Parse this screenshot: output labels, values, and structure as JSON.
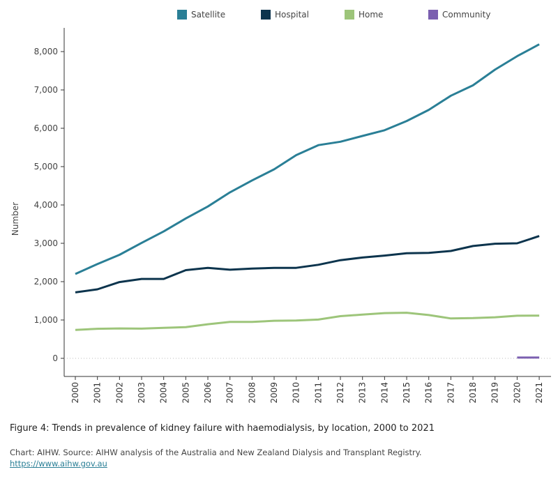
{
  "chart_data": {
    "type": "line",
    "title": "",
    "xlabel": "",
    "ylabel": "Number",
    "ylim": [
      0,
      8500
    ],
    "yticks": [
      0,
      1000,
      2000,
      3000,
      4000,
      5000,
      6000,
      7000,
      8000
    ],
    "ytick_labels": [
      "0",
      "1,000",
      "2,000",
      "3,000",
      "4,000",
      "5,000",
      "6,000",
      "7,000",
      "8,000"
    ],
    "x": [
      "2000",
      "2001",
      "2002",
      "2003",
      "2004",
      "2005",
      "2006",
      "2007",
      "2008",
      "2009",
      "2010",
      "2011",
      "2012",
      "2013",
      "2014",
      "2015",
      "2016",
      "2017",
      "2018",
      "2019",
      "2020",
      "2021"
    ],
    "grid": false,
    "legend_position": "top",
    "series": [
      {
        "name": "Satellite",
        "color": "#2a7f96",
        "values": [
          2200,
          2460,
          2700,
          3010,
          3310,
          3650,
          3960,
          4330,
          4640,
          4930,
          5300,
          5560,
          5650,
          5800,
          5950,
          6190,
          6480,
          6850,
          7120,
          7530,
          7880,
          8190
        ]
      },
      {
        "name": "Hospital",
        "color": "#0c344d",
        "values": [
          1720,
          1800,
          1990,
          2070,
          2070,
          2300,
          2360,
          2310,
          2340,
          2360,
          2360,
          2440,
          2560,
          2630,
          2680,
          2740,
          2750,
          2800,
          2930,
          2990,
          3000,
          3190
        ]
      },
      {
        "name": "Home",
        "color": "#9dc57a",
        "values": [
          740,
          770,
          780,
          775,
          795,
          815,
          890,
          950,
          950,
          980,
          985,
          1010,
          1100,
          1140,
          1180,
          1190,
          1130,
          1040,
          1050,
          1070,
          1110,
          1115
        ]
      },
      {
        "name": "Community",
        "color": "#7b5fb0",
        "values": [
          null,
          null,
          null,
          null,
          null,
          null,
          null,
          null,
          null,
          null,
          null,
          null,
          null,
          null,
          null,
          null,
          null,
          null,
          null,
          null,
          20,
          20
        ]
      }
    ]
  },
  "caption": "Figure 4: Trends in prevalence of kidney failure with haemodialysis, by location, 2000 to 2021",
  "source": "Chart: AIHW. Source: AIHW analysis of the Australia and New Zealand Dialysis and Transplant Registry.",
  "link": "https://www.aihw.gov.au"
}
